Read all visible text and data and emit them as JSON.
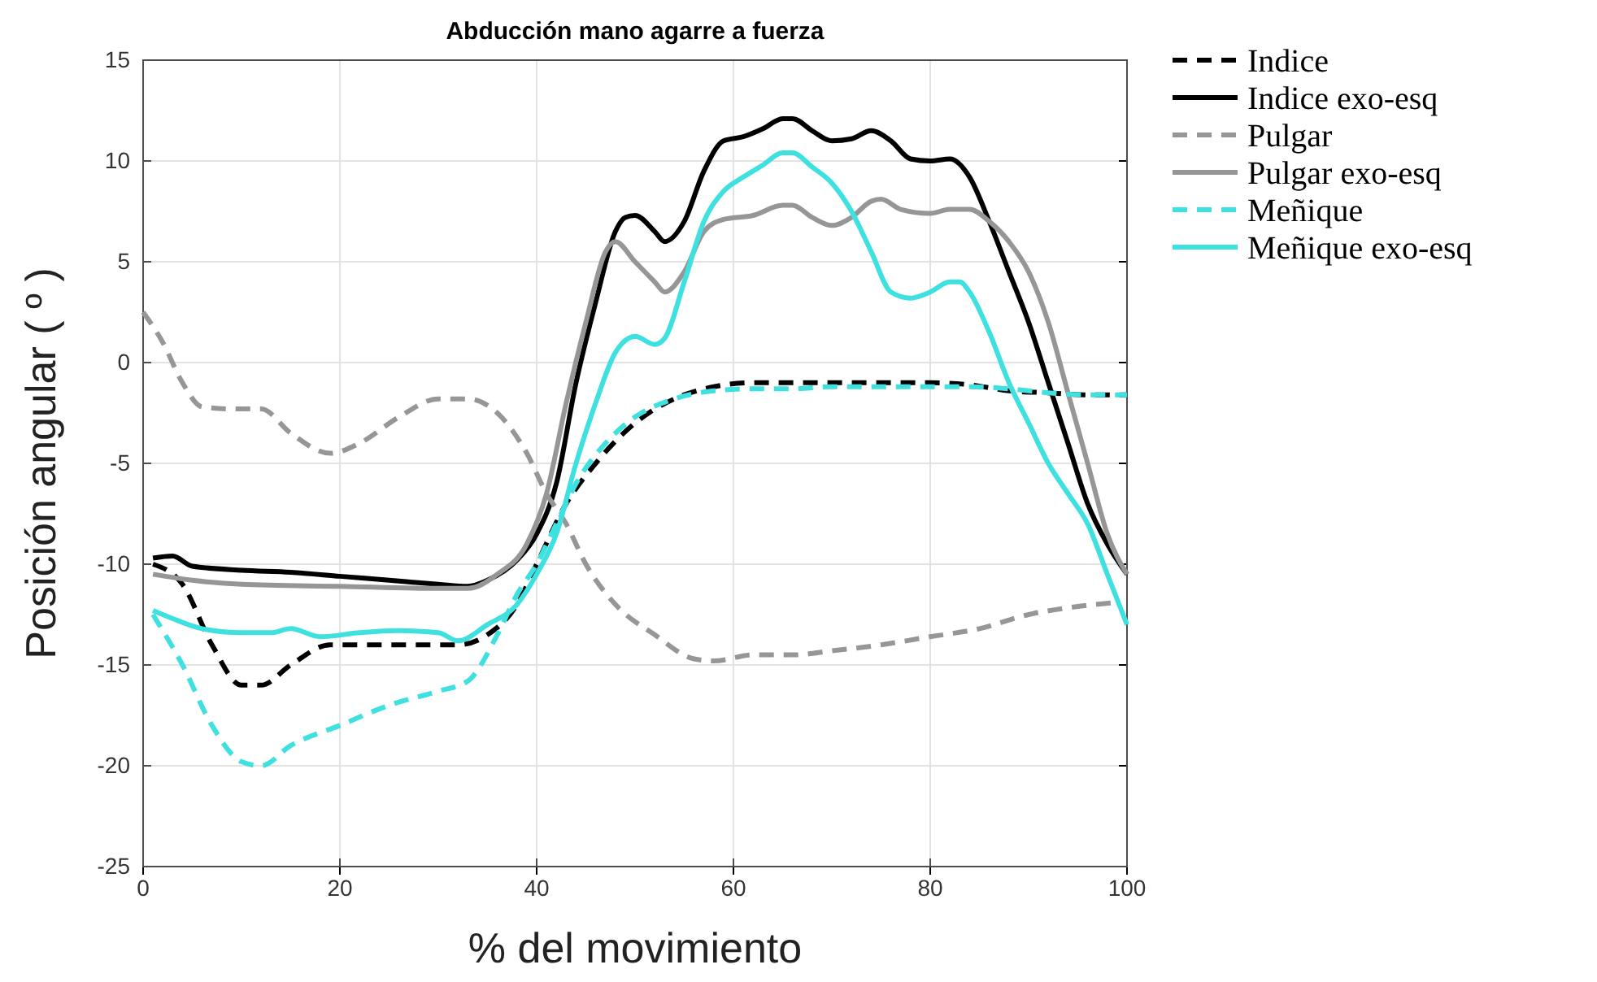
{
  "chart_data": {
    "type": "line",
    "title": "Abducción mano agarre a fuerza",
    "xlabel": "% del movimiento",
    "ylabel": "Posición angular ( º )",
    "xlim": [
      0,
      100
    ],
    "xticks": [
      0,
      20,
      40,
      60,
      80,
      100
    ],
    "ylim": [
      -25,
      15
    ],
    "yticks": [
      -25,
      -20,
      -15,
      -10,
      -5,
      0,
      5,
      10,
      15
    ],
    "grid": true,
    "legend": "right",
    "marker": "none",
    "series": [
      {
        "name": "Indice",
        "color": "#000000",
        "line_style": "dashed",
        "x": [
          1,
          4,
          7,
          10,
          12,
          15,
          19,
          25,
          32,
          35,
          38,
          40,
          43,
          46,
          50,
          54,
          58,
          62,
          66,
          70,
          75,
          80,
          84,
          88,
          92,
          96,
          100
        ],
        "values": [
          -10,
          -11,
          -14,
          -16,
          -16,
          -15,
          -14,
          -14,
          -14,
          -13.5,
          -12,
          -10,
          -7,
          -5,
          -3,
          -1.8,
          -1.2,
          -1,
          -1,
          -1,
          -1,
          -1,
          -1.1,
          -1.4,
          -1.5,
          -1.6,
          -1.6
        ]
      },
      {
        "name": "Indice exo-esq",
        "color": "#000000",
        "line_style": "solid",
        "x": [
          1,
          3,
          5,
          10,
          15,
          20,
          25,
          30,
          33,
          35,
          38,
          40,
          42,
          44,
          46,
          48,
          49,
          50,
          52,
          53,
          55,
          57,
          59,
          61,
          63,
          65,
          66,
          68,
          70,
          72,
          74,
          76,
          78,
          80,
          82,
          84,
          86,
          88,
          90,
          92,
          94,
          96,
          98,
          100
        ],
        "values": [
          -9.7,
          -9.6,
          -10.1,
          -10.3,
          -10.4,
          -10.6,
          -10.8,
          -11,
          -11.1,
          -10.8,
          -9.8,
          -8.5,
          -6,
          -1,
          3,
          6.5,
          7.2,
          7.3,
          6.5,
          6,
          7,
          9.5,
          11,
          11.2,
          11.6,
          12.1,
          12.1,
          11.5,
          11,
          11.1,
          11.5,
          11,
          10.1,
          10,
          10.1,
          9.2,
          7,
          4.5,
          2,
          -1,
          -4,
          -7,
          -9,
          -10.5
        ]
      },
      {
        "name": "Pulgar",
        "color": "#969696",
        "line_style": "dashed",
        "x": [
          0,
          2,
          4,
          6,
          9,
          12,
          15,
          19,
          22,
          26,
          30,
          33,
          36,
          39,
          41,
          43,
          45,
          48,
          52,
          56,
          58,
          62,
          66,
          70,
          75,
          80,
          85,
          90,
          95,
          99
        ],
        "values": [
          2.5,
          1,
          -1,
          -2.2,
          -2.3,
          -2.3,
          -3.5,
          -4.5,
          -4,
          -2.7,
          -1.8,
          -1.8,
          -2.5,
          -4.5,
          -6.5,
          -8,
          -10,
          -12,
          -13.5,
          -14.7,
          -14.8,
          -14.5,
          -14.5,
          -14.3,
          -14,
          -13.6,
          -13.2,
          -12.5,
          -12.1,
          -11.9
        ]
      },
      {
        "name": "Pulgar exo-esq",
        "color": "#969696",
        "line_style": "solid",
        "x": [
          1,
          5,
          10,
          20,
          30,
          33,
          36,
          39,
          41,
          43,
          45,
          47,
          48,
          50,
          52,
          53,
          55,
          57,
          59,
          62,
          65,
          66,
          68,
          70,
          72,
          74,
          75,
          77,
          80,
          82,
          84,
          86,
          88,
          90,
          92,
          94,
          96,
          98,
          100
        ],
        "values": [
          -10.5,
          -10.8,
          -11,
          -11.1,
          -11.2,
          -11.2,
          -10.5,
          -9,
          -6.5,
          -2,
          2,
          5.5,
          6,
          5,
          4,
          3.5,
          4.5,
          6.5,
          7.1,
          7.3,
          7.8,
          7.8,
          7.2,
          6.8,
          7.2,
          8,
          8.1,
          7.6,
          7.4,
          7.6,
          7.6,
          7,
          6,
          4.5,
          2,
          -1.5,
          -5,
          -8.5,
          -10.5
        ]
      },
      {
        "name": "Meñique",
        "color": "#3fe0e0",
        "line_style": "dashed",
        "x": [
          1,
          4,
          7,
          10,
          12,
          15,
          20,
          25,
          30,
          33,
          36,
          38,
          40,
          42,
          44,
          47,
          50,
          54,
          58,
          62,
          66,
          70,
          75,
          80,
          84,
          88,
          92,
          96,
          100
        ],
        "values": [
          -12.5,
          -15,
          -18,
          -19.8,
          -20,
          -19,
          -18,
          -17,
          -16.3,
          -15.8,
          -13.5,
          -11.5,
          -10,
          -8,
          -6,
          -4,
          -2.7,
          -1.8,
          -1.4,
          -1.3,
          -1.3,
          -1.2,
          -1.2,
          -1.2,
          -1.2,
          -1.3,
          -1.5,
          -1.6,
          -1.6
        ]
      },
      {
        "name": "Meñique exo-esq",
        "color": "#3fe0e0",
        "line_style": "solid",
        "x": [
          1,
          3,
          6,
          10,
          13,
          15,
          18,
          22,
          26,
          30,
          32,
          35,
          38,
          40,
          42,
          44,
          46,
          48,
          50,
          52,
          53,
          55,
          57,
          59,
          61,
          63,
          65,
          66,
          68,
          70,
          72,
          74,
          76,
          78,
          80,
          82,
          83,
          84,
          86,
          88,
          90,
          92,
          94,
          96,
          98,
          100
        ],
        "values": [
          -12.3,
          -12.7,
          -13.2,
          -13.4,
          -13.4,
          -13.2,
          -13.6,
          -13.4,
          -13.3,
          -13.4,
          -13.8,
          -13,
          -12,
          -10.5,
          -8.5,
          -5,
          -2,
          0.5,
          1.3,
          0.9,
          1.2,
          4,
          7,
          8.5,
          9.2,
          9.8,
          10.4,
          10.4,
          9.7,
          8.9,
          7.5,
          5.5,
          3.5,
          3.2,
          3.5,
          4,
          4,
          3.5,
          1.5,
          -1,
          -3,
          -5,
          -6.5,
          -8,
          -10.5,
          -13
        ]
      }
    ]
  }
}
